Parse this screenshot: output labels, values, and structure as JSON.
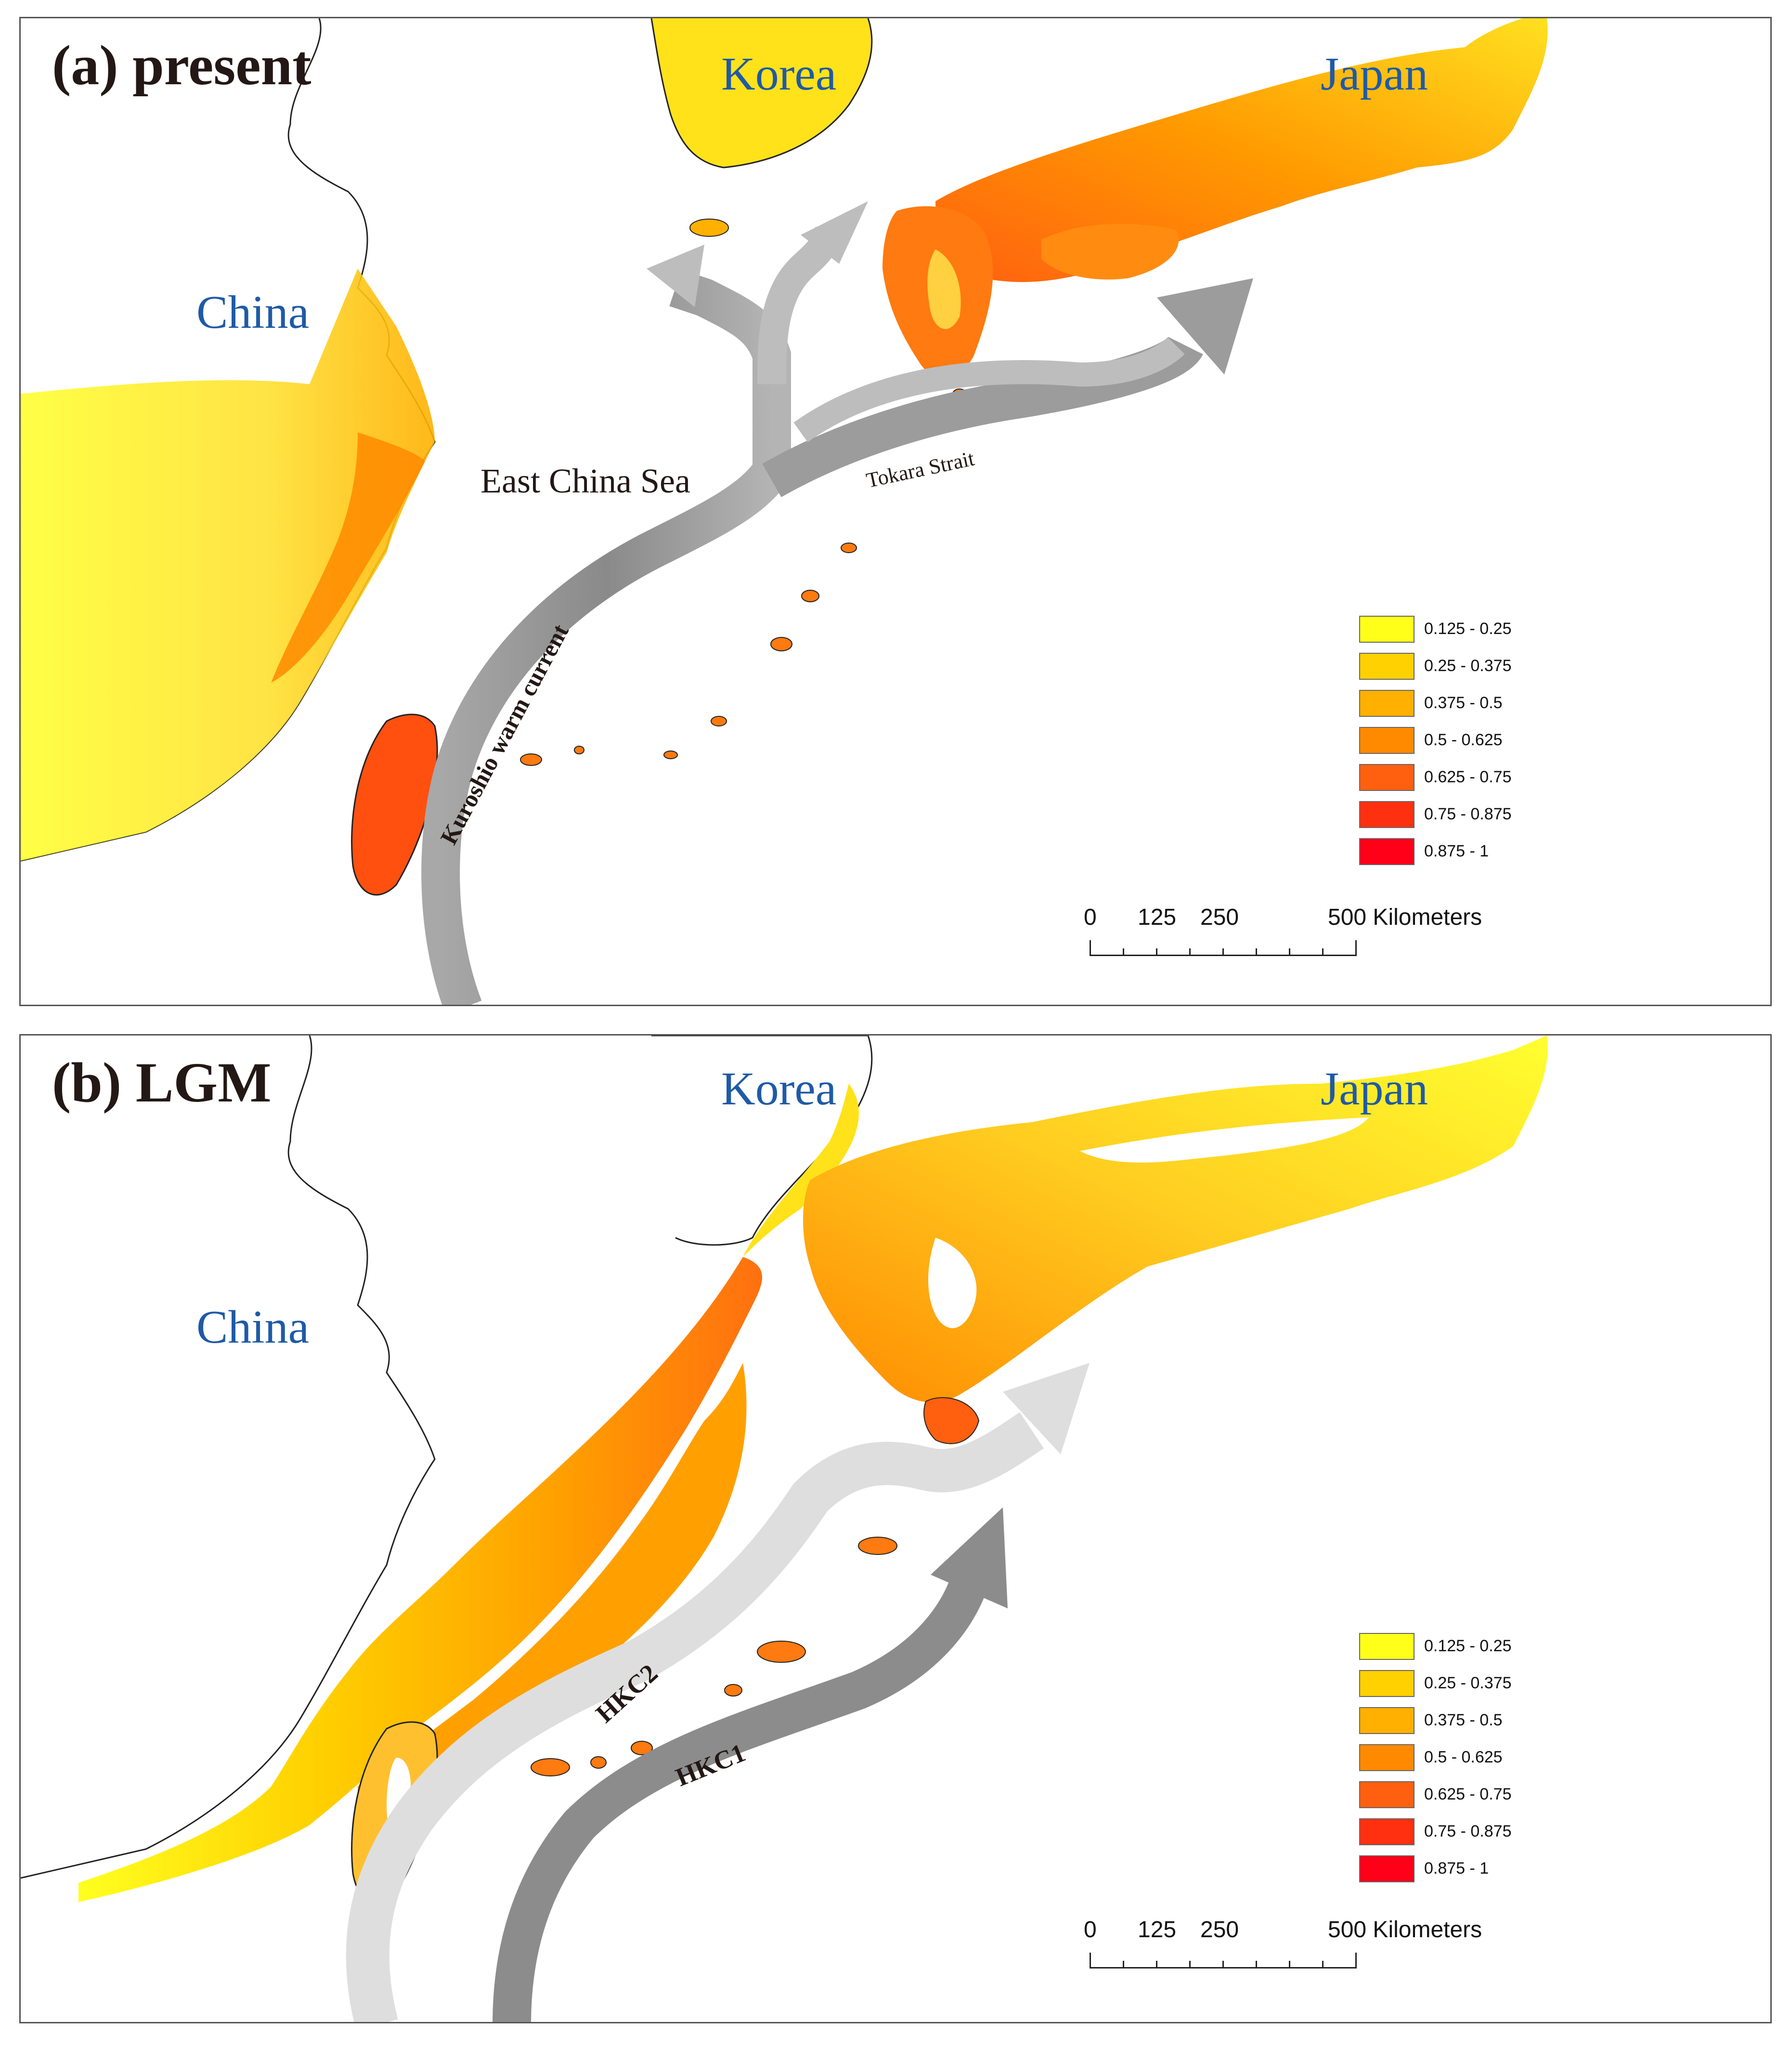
{
  "colors": {
    "legend": [
      "#ffff1a",
      "#ffd100",
      "#ffb000",
      "#ff8a00",
      "#ff6010",
      "#ff3010",
      "#ff0018"
    ],
    "land_label": "#1f5aa6",
    "title": "#231815",
    "current_dark": "#8c8c8c",
    "current_light": "#d9d9d9"
  },
  "legend_items": [
    "0.125 - 0.25",
    "0.25 - 0.375",
    "0.375 - 0.5",
    "0.5 - 0.625",
    "0.625 - 0.75",
    "0.75 - 0.875",
    "0.875 - 1"
  ],
  "scale": {
    "ticks": [
      "0",
      "125",
      "250",
      "500 Kilometers"
    ]
  },
  "panel_a": {
    "title": "(a) present",
    "labels": {
      "china": "China",
      "korea": "Korea",
      "japan": "Japan",
      "east_china_sea": "East China Sea",
      "tokara_strait": "Tokara Strait",
      "kuroshio": "Kuroshio warm current"
    }
  },
  "panel_b": {
    "title": "(b) LGM",
    "labels": {
      "china": "China",
      "korea": "Korea",
      "japan": "Japan",
      "hkc2": "HKC2",
      "hkc1": "HKC1"
    }
  }
}
